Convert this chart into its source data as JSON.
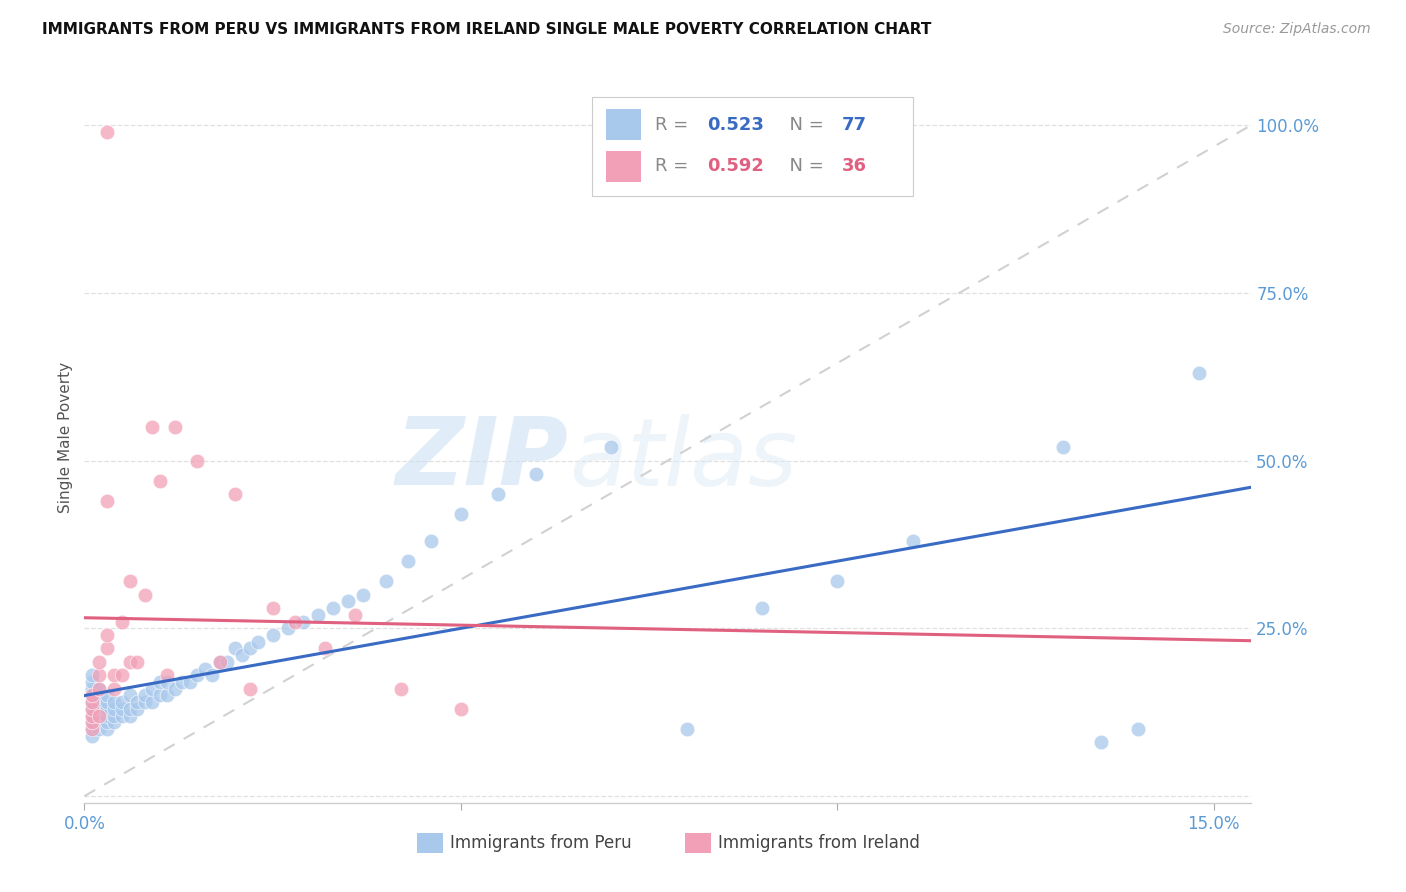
{
  "title": "IMMIGRANTS FROM PERU VS IMMIGRANTS FROM IRELAND SINGLE MALE POVERTY CORRELATION CHART",
  "source": "Source: ZipAtlas.com",
  "ylabel": "Single Male Poverty",
  "xlim": [
    0.0,
    0.155
  ],
  "ylim": [
    -0.01,
    1.08
  ],
  "yticks": [
    0.0,
    0.25,
    0.5,
    0.75,
    1.0
  ],
  "ytick_labels": [
    "",
    "25.0%",
    "50.0%",
    "75.0%",
    "100.0%"
  ],
  "xticks": [
    0.0,
    0.05,
    0.1,
    0.15
  ],
  "xtick_labels": [
    "0.0%",
    "",
    "",
    "15.0%"
  ],
  "peru_color": "#A8C8EC",
  "ireland_color": "#F2A0B8",
  "peru_line_color": "#3A6BC4",
  "ireland_line_color": "#E06080",
  "diag_color": "#CCCCCC",
  "peru_R": "0.523",
  "peru_N": "77",
  "ireland_R": "0.592",
  "ireland_N": "36",
  "watermark_zip": "ZIP",
  "watermark_atlas": "atlas",
  "axis_tick_color": "#5B9BD5",
  "grid_color": "#DDDDDD",
  "title_fontsize": 11,
  "source_fontsize": 10,
  "tick_fontsize": 12,
  "legend_fontsize": 13,
  "ylabel_fontsize": 11,
  "peru_x": [
    0.001,
    0.001,
    0.001,
    0.001,
    0.001,
    0.001,
    0.001,
    0.001,
    0.001,
    0.001,
    0.002,
    0.002,
    0.002,
    0.002,
    0.002,
    0.002,
    0.002,
    0.003,
    0.003,
    0.003,
    0.003,
    0.003,
    0.003,
    0.004,
    0.004,
    0.004,
    0.004,
    0.005,
    0.005,
    0.005,
    0.006,
    0.006,
    0.006,
    0.007,
    0.007,
    0.008,
    0.008,
    0.009,
    0.009,
    0.01,
    0.01,
    0.011,
    0.011,
    0.012,
    0.013,
    0.014,
    0.015,
    0.016,
    0.017,
    0.018,
    0.019,
    0.02,
    0.021,
    0.022,
    0.023,
    0.025,
    0.027,
    0.029,
    0.031,
    0.033,
    0.035,
    0.037,
    0.04,
    0.043,
    0.046,
    0.05,
    0.055,
    0.06,
    0.07,
    0.08,
    0.09,
    0.1,
    0.11,
    0.13,
    0.135,
    0.14,
    0.148
  ],
  "peru_y": [
    0.1,
    0.11,
    0.12,
    0.13,
    0.14,
    0.15,
    0.16,
    0.17,
    0.18,
    0.09,
    0.1,
    0.11,
    0.12,
    0.13,
    0.14,
    0.15,
    0.16,
    0.1,
    0.11,
    0.12,
    0.13,
    0.14,
    0.15,
    0.11,
    0.12,
    0.13,
    0.14,
    0.12,
    0.13,
    0.14,
    0.12,
    0.13,
    0.15,
    0.13,
    0.14,
    0.14,
    0.15,
    0.14,
    0.16,
    0.15,
    0.17,
    0.15,
    0.17,
    0.16,
    0.17,
    0.17,
    0.18,
    0.19,
    0.18,
    0.2,
    0.2,
    0.22,
    0.21,
    0.22,
    0.23,
    0.24,
    0.25,
    0.26,
    0.27,
    0.28,
    0.29,
    0.3,
    0.32,
    0.35,
    0.38,
    0.42,
    0.45,
    0.48,
    0.52,
    0.1,
    0.28,
    0.32,
    0.38,
    0.52,
    0.08,
    0.1,
    0.63
  ],
  "ireland_x": [
    0.001,
    0.001,
    0.001,
    0.001,
    0.001,
    0.001,
    0.002,
    0.002,
    0.002,
    0.002,
    0.003,
    0.003,
    0.003,
    0.003,
    0.004,
    0.004,
    0.005,
    0.005,
    0.006,
    0.006,
    0.007,
    0.008,
    0.009,
    0.01,
    0.011,
    0.012,
    0.015,
    0.018,
    0.02,
    0.022,
    0.025,
    0.028,
    0.032,
    0.036,
    0.042,
    0.05
  ],
  "ireland_y": [
    0.1,
    0.11,
    0.12,
    0.13,
    0.14,
    0.15,
    0.12,
    0.16,
    0.18,
    0.2,
    0.22,
    0.24,
    0.44,
    0.99,
    0.16,
    0.18,
    0.18,
    0.26,
    0.2,
    0.32,
    0.2,
    0.3,
    0.55,
    0.47,
    0.18,
    0.55,
    0.5,
    0.2,
    0.45,
    0.16,
    0.28,
    0.26,
    0.22,
    0.27,
    0.16,
    0.13
  ]
}
